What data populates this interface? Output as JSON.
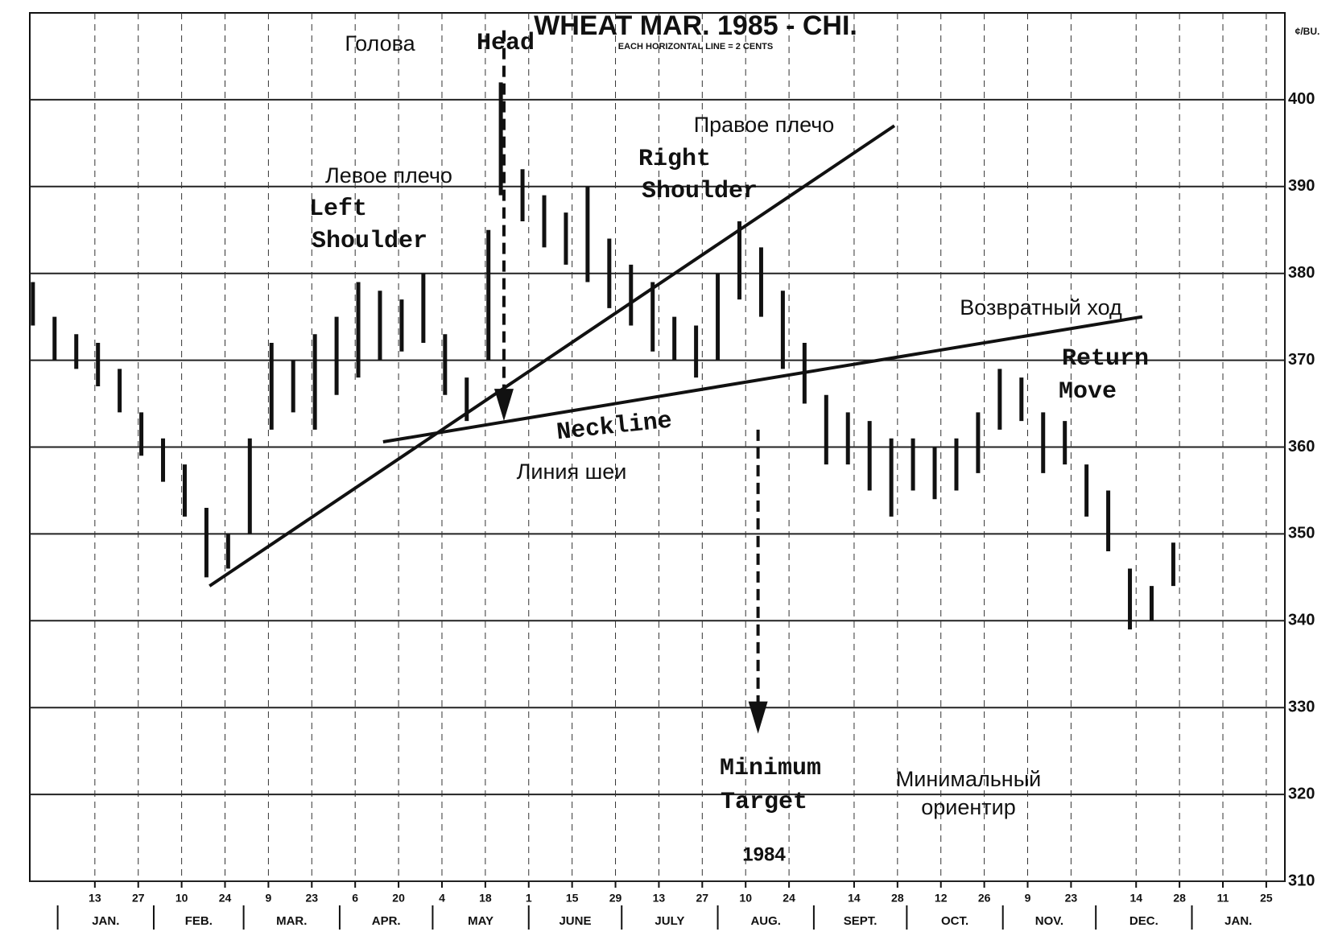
{
  "chart_data": {
    "type": "range-bar",
    "title": "WHEAT MAR. 1985 - CHI.",
    "subtitle": "EACH HORIZONTAL LINE = 2 CENTS",
    "unit": "¢/BU.",
    "year_label": "1984",
    "annotations": {
      "head_ru": "Голова",
      "head_en": "Head",
      "right_shoulder_ru": "Правое плечо",
      "right_shoulder_en": [
        "Right",
        "Shoulder"
      ],
      "left_shoulder_ru": "Левое плечо",
      "left_shoulder_en": [
        "Left",
        "Shoulder"
      ],
      "return_move_ru": "Возвратный ход",
      "return_move_en": [
        "Return",
        "Move"
      ],
      "neckline_en": "Neckline",
      "neckline_ru": "Линия шеи",
      "target_en": [
        "Minimum",
        "Target"
      ],
      "target_ru": [
        "Минимальный",
        "ориентир"
      ]
    },
    "x": [
      -7,
      0,
      7,
      14,
      21,
      28,
      35,
      42,
      49,
      56,
      63,
      70,
      77,
      84,
      91,
      98,
      105,
      112,
      119,
      126,
      133,
      140,
      144,
      151,
      158,
      165,
      172,
      179,
      186,
      193,
      200,
      207,
      214,
      221,
      228,
      235,
      242,
      249,
      256,
      263,
      270,
      277,
      284,
      291,
      298,
      305,
      312,
      319,
      326,
      333,
      340,
      347,
      354,
      361
    ],
    "high": [
      379,
      375,
      373,
      372,
      369,
      364,
      361,
      358,
      353,
      350,
      361,
      372,
      370,
      373,
      375,
      379,
      378,
      377,
      380,
      373,
      368,
      385,
      402,
      392,
      389,
      387,
      390,
      384,
      381,
      379,
      375,
      374,
      380,
      386,
      383,
      378,
      372,
      366,
      364,
      363,
      361,
      361,
      360,
      361,
      364,
      369,
      368,
      364,
      363,
      358,
      355,
      346,
      344,
      349
    ],
    "low": [
      374,
      370,
      369,
      367,
      364,
      359,
      356,
      352,
      345,
      346,
      350,
      362,
      364,
      362,
      366,
      368,
      370,
      371,
      372,
      366,
      363,
      370,
      389,
      386,
      383,
      381,
      379,
      376,
      374,
      371,
      370,
      368,
      370,
      377,
      375,
      369,
      365,
      358,
      358,
      355,
      352,
      355,
      354,
      355,
      357,
      362,
      363,
      357,
      358,
      352,
      348,
      339,
      340,
      344
    ],
    "color": "#111111",
    "trend_lines": [
      {
        "x": [
          50,
          271
        ],
        "y": [
          344,
          397
        ]
      },
      {
        "x": [
          106,
          351
        ],
        "y": [
          360.6,
          375
        ]
      }
    ],
    "arrows": [
      {
        "x": [
          145,
          145
        ],
        "y": [
          408,
          363
        ]
      },
      {
        "x": [
          227,
          227
        ],
        "y": [
          362,
          327
        ]
      }
    ],
    "xlim": [
      -8,
      397
    ],
    "ylim": [
      310,
      410
    ],
    "yticks": [
      310,
      320,
      330,
      340,
      350,
      360,
      370,
      380,
      390,
      400
    ],
    "xticks": [
      13,
      27,
      {
        "value": 41,
        "label": "10"
      },
      {
        "value": 55,
        "label": "24"
      },
      {
        "value": 69,
        "label": "9"
      },
      {
        "value": 83,
        "label": "23"
      },
      {
        "value": 97,
        "label": "6"
      },
      {
        "value": 111,
        "label": "20"
      },
      {
        "value": 125,
        "label": "4"
      },
      {
        "value": 139,
        "label": "18"
      },
      {
        "value": 153,
        "label": "1"
      },
      {
        "value": 167,
        "label": "15"
      },
      {
        "value": 181,
        "label": "29"
      },
      {
        "value": 195,
        "label": "13"
      },
      {
        "value": 209,
        "label": "27"
      },
      {
        "value": 223,
        "label": "10"
      },
      {
        "value": 237,
        "label": "24"
      },
      {
        "value": 258,
        "label": "14"
      },
      {
        "value": 272,
        "label": "28"
      },
      {
        "value": 286,
        "label": "12"
      },
      {
        "value": 300,
        "label": "26"
      },
      {
        "value": 314,
        "label": "9"
      },
      {
        "value": 328,
        "label": "23"
      },
      {
        "value": 349,
        "label": "14"
      },
      {
        "value": 363,
        "label": "28"
      },
      {
        "value": 377,
        "label": "11"
      },
      {
        "value": 391,
        "label": "25"
      }
    ],
    "months": [
      {
        "value": 1,
        "label": "JAN."
      },
      {
        "value": 32,
        "label": "FEB."
      },
      {
        "value": 61,
        "label": "MAR."
      },
      {
        "value": 92,
        "label": "APR."
      },
      {
        "value": 122,
        "label": "MAY"
      },
      {
        "value": 153,
        "label": "JUNE"
      },
      {
        "value": 183,
        "label": "JULY"
      },
      {
        "value": 214,
        "label": "AUG."
      },
      {
        "value": 245,
        "label": "SEPT."
      },
      {
        "value": 275,
        "label": "OCT."
      },
      {
        "value": 306,
        "label": "NOV."
      },
      {
        "value": 336,
        "label": "DEC."
      },
      {
        "value": 367,
        "label": "JAN."
      }
    ],
    "grid": true
  }
}
